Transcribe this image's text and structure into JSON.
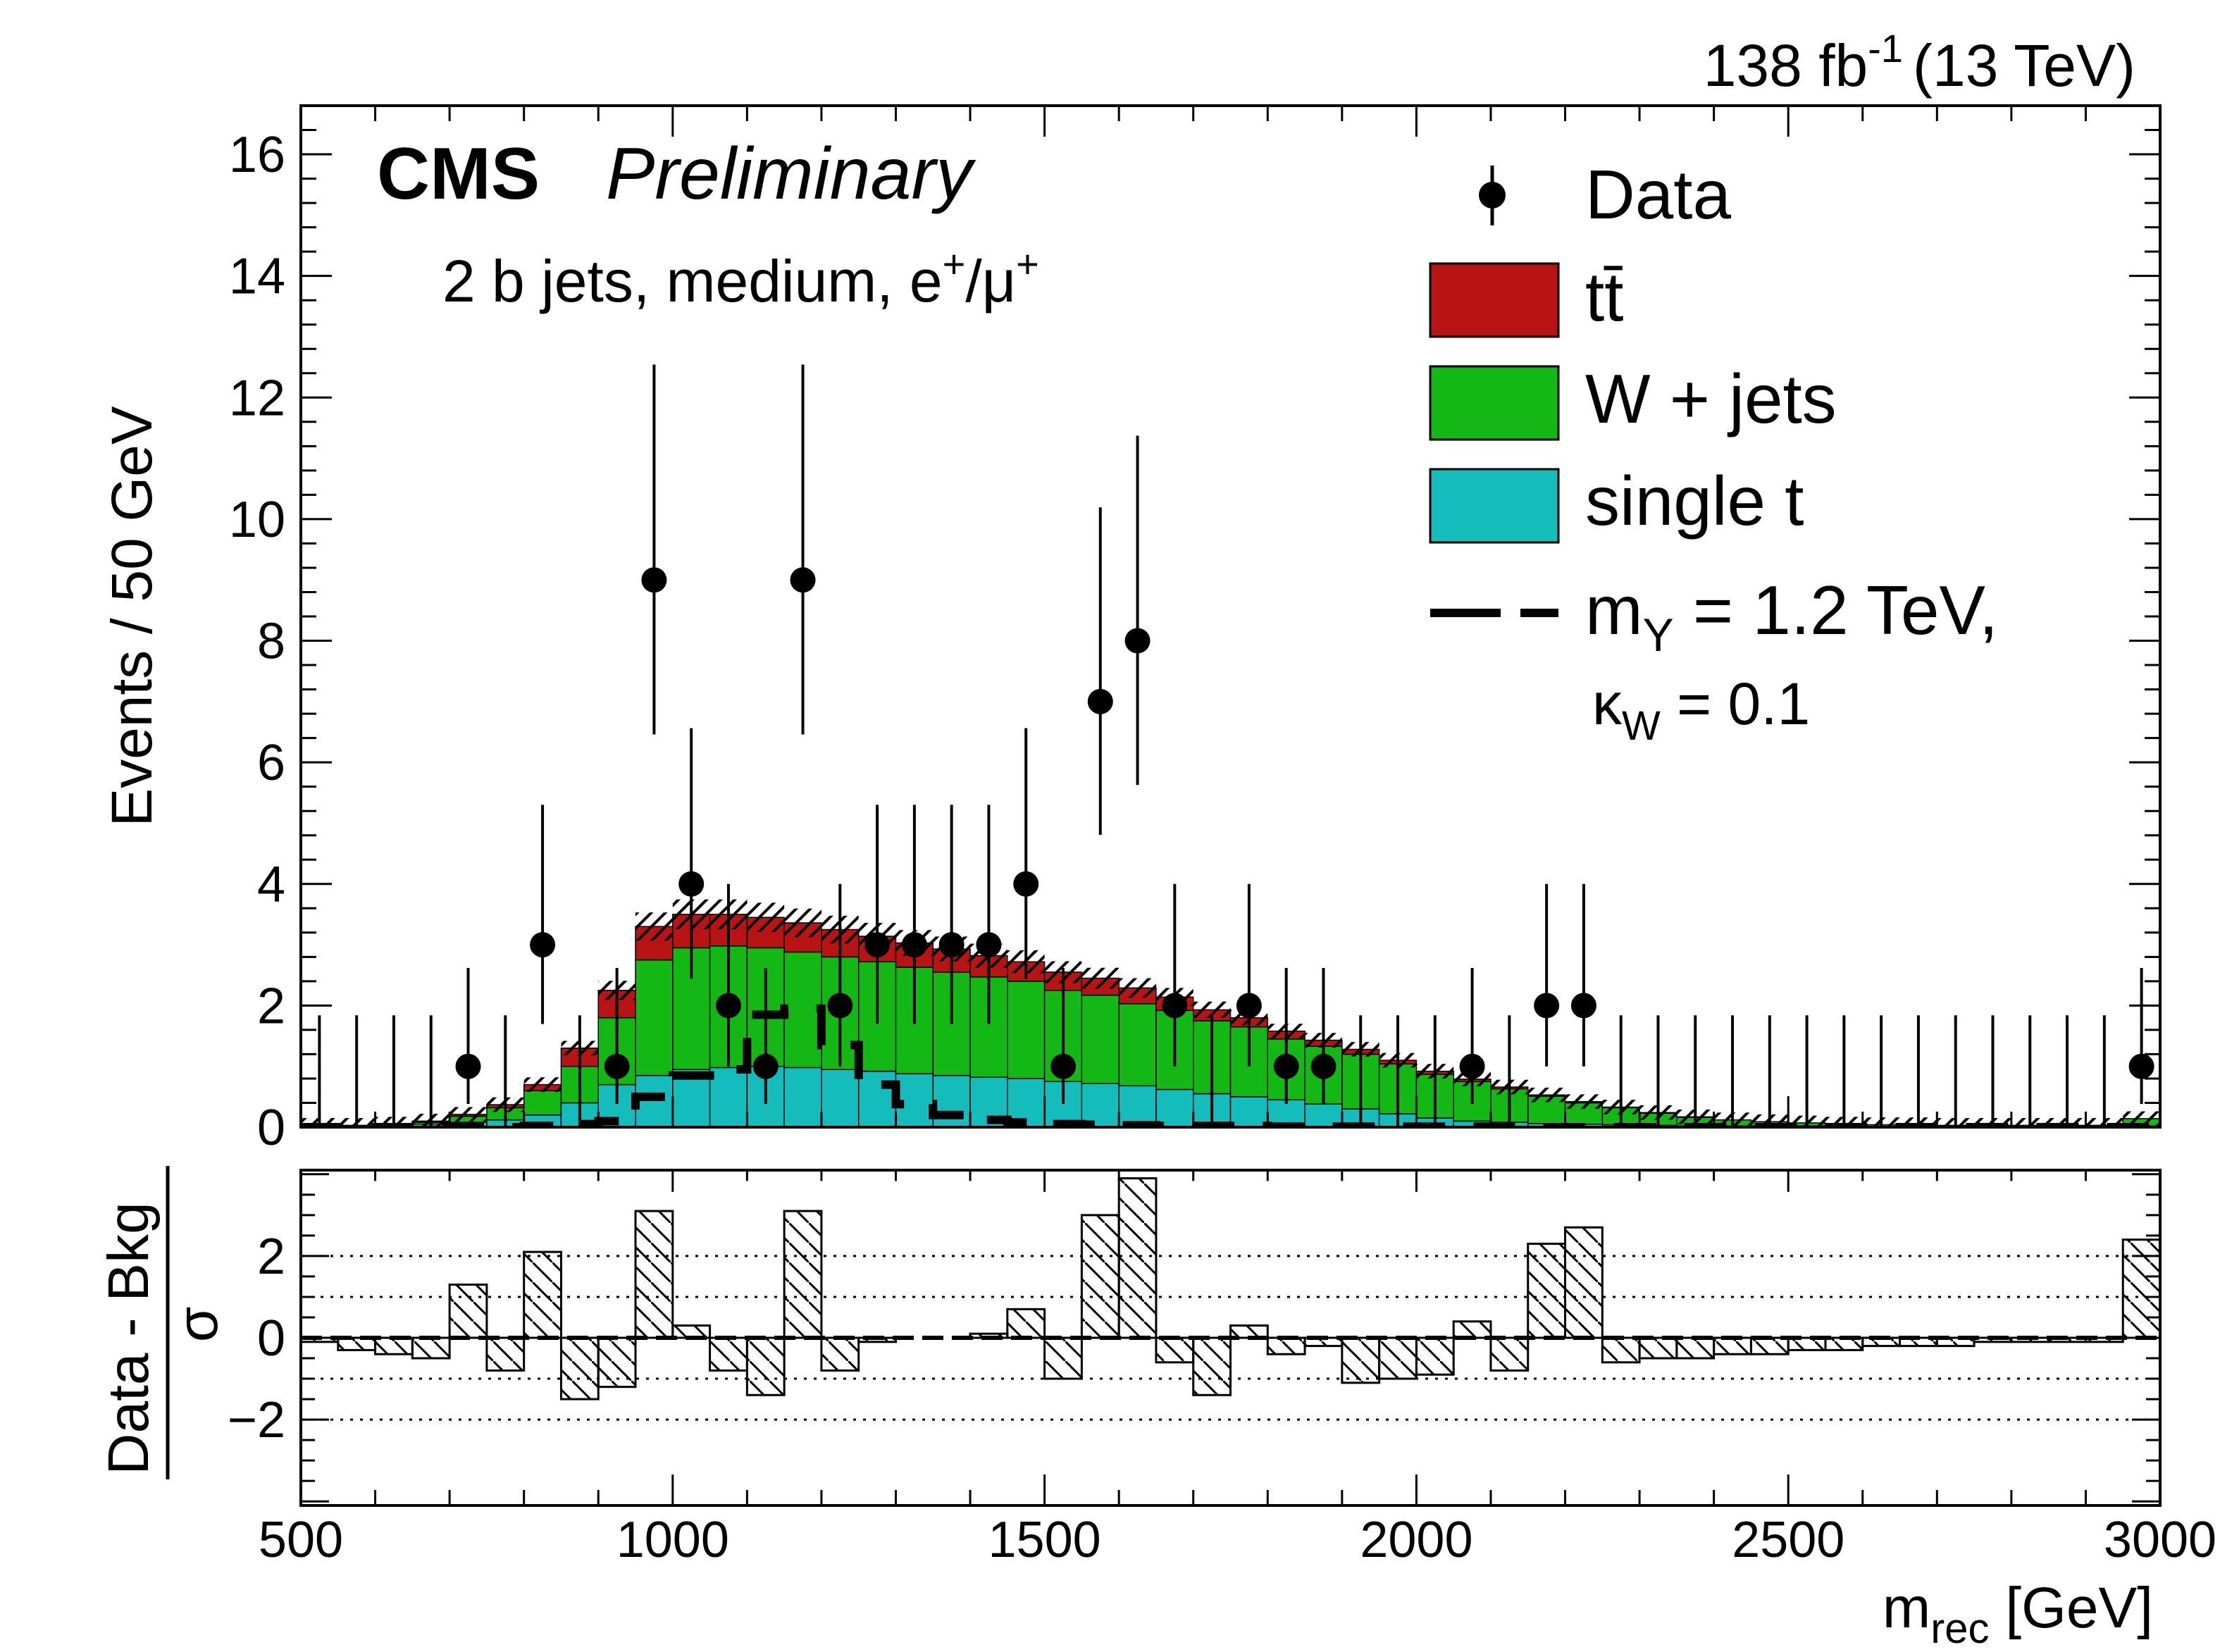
{
  "header": {
    "lumi": "138 fb",
    "lumi_exp": "-1",
    "energy": "(13 TeV)",
    "experiment": "CMS",
    "status": "Preliminary",
    "selection_main": "2 b jets, medium, e",
    "selection_sup1": "+",
    "selection_mid": "/μ",
    "selection_sup2": "+"
  },
  "legend": {
    "data": "Data",
    "ttbar": "tt̄",
    "wjets": "W + jets",
    "singlet": "single t",
    "signal_line1_pre": "m",
    "signal_line1_sub": "Y",
    "signal_line1_post": " = 1.2 TeV,",
    "signal_line2_pre": "κ",
    "signal_line2_sub": "W",
    "signal_line2_post": " = 0.1"
  },
  "colors": {
    "ttbar": "#b81414",
    "wjets": "#14b814",
    "singlet": "#14bcbc",
    "data": "#000000"
  },
  "chart_data": [
    {
      "type": "bar",
      "stacked": true,
      "xlabel_main": "m",
      "xlabel_sub": "rec",
      "xlabel_unit": " [GeV]",
      "ylabel": "Events / 50 GeV",
      "xlim": [
        500,
        3000
      ],
      "ylim": [
        0,
        16.8
      ],
      "xticks": [
        500,
        1000,
        1500,
        2000,
        2500,
        3000
      ],
      "yticks": [
        0,
        2,
        4,
        6,
        8,
        10,
        12,
        14,
        16
      ],
      "bin_width": 50,
      "bin_low_edges": [
        500,
        550,
        600,
        650,
        700,
        750,
        800,
        850,
        900,
        950,
        1000,
        1050,
        1100,
        1150,
        1200,
        1250,
        1300,
        1350,
        1400,
        1450,
        1500,
        1550,
        1600,
        1650,
        1700,
        1750,
        1800,
        1850,
        1900,
        1950,
        2000,
        2050,
        2100,
        2150,
        2200,
        2250,
        2300,
        2350,
        2400,
        2450,
        2500,
        2550,
        2600,
        2650,
        2700,
        2750,
        2800,
        2850,
        2900,
        2950
      ],
      "series": [
        {
          "name": "single t",
          "values": [
            0.02,
            0.02,
            0.03,
            0.05,
            0.08,
            0.12,
            0.2,
            0.4,
            0.7,
            0.85,
            0.95,
            0.98,
            1.0,
            0.98,
            0.95,
            0.92,
            0.88,
            0.85,
            0.82,
            0.8,
            0.75,
            0.72,
            0.68,
            0.62,
            0.55,
            0.5,
            0.45,
            0.38,
            0.3,
            0.22,
            0.15,
            0.1,
            0.08,
            0.06,
            0.05,
            0.04,
            0.03,
            0.02,
            0.02,
            0.02,
            0.02,
            0.01,
            0.01,
            0.01,
            0.01,
            0.01,
            0.01,
            0.01,
            0.01,
            0.02
          ]
        },
        {
          "name": "W + jets",
          "values": [
            0.01,
            0.01,
            0.02,
            0.03,
            0.1,
            0.2,
            0.4,
            0.6,
            1.1,
            1.9,
            2.0,
            2.0,
            1.95,
            1.9,
            1.85,
            1.8,
            1.75,
            1.7,
            1.65,
            1.6,
            1.5,
            1.45,
            1.35,
            1.3,
            1.2,
            1.15,
            1.0,
            0.95,
            0.9,
            0.82,
            0.72,
            0.65,
            0.55,
            0.45,
            0.35,
            0.28,
            0.2,
            0.14,
            0.1,
            0.07,
            0.05,
            0.04,
            0.03,
            0.03,
            0.02,
            0.02,
            0.02,
            0.02,
            0.02,
            0.12
          ]
        },
        {
          "name": "tt̄",
          "values": [
            0.0,
            0.0,
            0.0,
            0.02,
            0.03,
            0.05,
            0.1,
            0.3,
            0.45,
            0.55,
            0.55,
            0.52,
            0.5,
            0.48,
            0.45,
            0.42,
            0.4,
            0.38,
            0.35,
            0.32,
            0.3,
            0.28,
            0.26,
            0.22,
            0.18,
            0.15,
            0.13,
            0.1,
            0.08,
            0.06,
            0.05,
            0.04,
            0.03,
            0.02,
            0.02,
            0.01,
            0.01,
            0.01,
            0.0,
            0.0,
            0.0,
            0.0,
            0.0,
            0.0,
            0.0,
            0.0,
            0.0,
            0.0,
            0.0,
            0.0
          ]
        }
      ],
      "signal": {
        "name": "m_Y = 1.2 TeV, κ_W = 0.1",
        "values": [
          0.0,
          0.0,
          0.0,
          0.0,
          0.0,
          0.0,
          0.02,
          0.05,
          0.1,
          0.5,
          0.85,
          0.95,
          1.85,
          1.95,
          1.35,
          0.7,
          0.38,
          0.2,
          0.12,
          0.08,
          0.05,
          0.04,
          0.03,
          0.02,
          0.02,
          0.02,
          0.01,
          0.01,
          0.01,
          0.01,
          0.01,
          0.01,
          0.0,
          0.0,
          0.0,
          0.0,
          0.0,
          0.0,
          0.0,
          0.0,
          0.0,
          0.0,
          0.0,
          0.0,
          0.0,
          0.0,
          0.0,
          0.0,
          0.0,
          0.0
        ]
      },
      "data": {
        "name": "Data",
        "x": [
          525,
          575,
          625,
          675,
          725,
          775,
          825,
          875,
          925,
          975,
          1025,
          1075,
          1125,
          1175,
          1225,
          1275,
          1325,
          1375,
          1425,
          1475,
          1525,
          1575,
          1625,
          1675,
          1725,
          1775,
          1825,
          1875,
          1925,
          1975,
          2025,
          2075,
          2125,
          2175,
          2225,
          2275,
          2325,
          2375,
          2425,
          2475,
          2525,
          2575,
          2625,
          2675,
          2725,
          2775,
          2825,
          2875,
          2925,
          2975
        ],
        "values": [
          0,
          0,
          0,
          0,
          1,
          0,
          3,
          0,
          1,
          9,
          4,
          2,
          1,
          9,
          2,
          3,
          3,
          3,
          3,
          4,
          1,
          7,
          8,
          2,
          0,
          2,
          1,
          1,
          0,
          0,
          0,
          1,
          0,
          2,
          2,
          0,
          0,
          0,
          0,
          0,
          0,
          0,
          0,
          0,
          0,
          0,
          0,
          0,
          0,
          1
        ]
      }
    },
    {
      "type": "bar",
      "ylabel_num": "Data - Bkg",
      "ylabel_den": "σ",
      "xlim": [
        500,
        3000
      ],
      "ylim": [
        -4.1,
        4.1
      ],
      "yticks": [
        -2,
        0,
        2
      ],
      "reference_lines": [
        -2,
        -1,
        1,
        2
      ],
      "values": [
        -0.1,
        -0.3,
        -0.4,
        -0.5,
        1.3,
        -0.8,
        2.1,
        -1.5,
        -1.2,
        3.1,
        0.3,
        -0.8,
        -1.4,
        3.1,
        -0.8,
        -0.1,
        0.0,
        0.0,
        0.1,
        0.7,
        -1.0,
        3.0,
        3.9,
        -0.6,
        -1.4,
        0.3,
        -0.4,
        -0.2,
        -1.1,
        -1.0,
        -0.9,
        0.4,
        -0.8,
        2.3,
        2.7,
        -0.6,
        -0.5,
        -0.5,
        -0.4,
        -0.4,
        -0.3,
        -0.3,
        -0.2,
        -0.2,
        -0.2,
        -0.1,
        -0.1,
        -0.1,
        -0.1,
        2.4
      ]
    }
  ]
}
